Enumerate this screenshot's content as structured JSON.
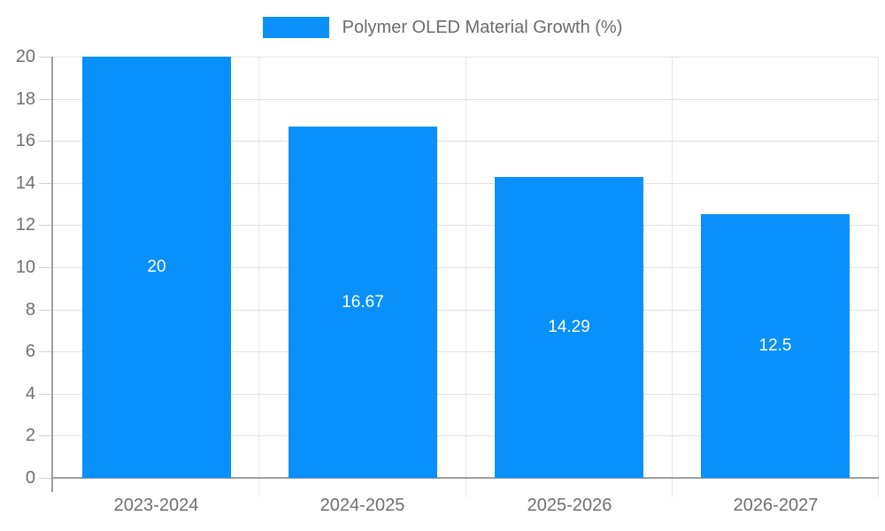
{
  "legend": {
    "label": "Polymer OLED Material Growth (%)"
  },
  "chart_data": {
    "type": "bar",
    "title": "Polymer OLED Material Growth (%)",
    "categories": [
      "2023-2024",
      "2024-2025",
      "2025-2026",
      "2026-2027"
    ],
    "values": [
      20,
      16.67,
      14.29,
      12.5
    ],
    "value_labels": [
      "20",
      "16.67",
      "14.29",
      "12.5"
    ],
    "xlabel": "",
    "ylabel": "",
    "ylim": [
      0,
      20
    ],
    "ytick_step": 2,
    "ytick_labels": [
      "0",
      "2",
      "4",
      "6",
      "8",
      "10",
      "12",
      "14",
      "16",
      "18",
      "20"
    ],
    "grid": true,
    "legend_position": "top-center",
    "value_labels_inside_bars": true
  },
  "colors": {
    "bar": "#0990fa",
    "value_label": "#ffffff",
    "axis_line": "#9e9e9e",
    "gridline_horizontal": "#e2e2e2",
    "gridline_vertical": "#e8e8e8",
    "tick": "#cfcfcf",
    "axis_text": "#6e6e6e",
    "legend_text": "#6b6b6b",
    "background": "#ffffff"
  }
}
